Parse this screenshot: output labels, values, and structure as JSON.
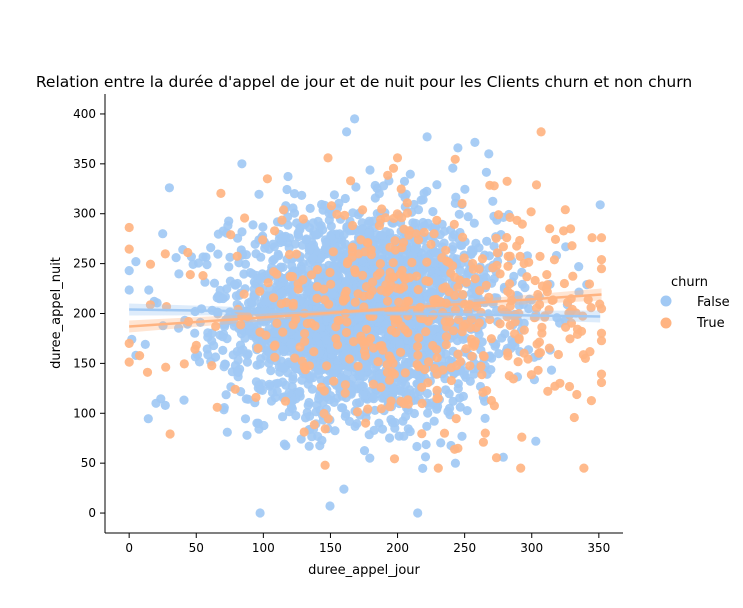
{
  "chart_data": {
    "type": "scatter",
    "title": "Relation entre la durée d'appel de jour et de nuit pour les Clients churn et non churn",
    "xlabel": "duree_appel_jour",
    "ylabel": "duree_appel_nuit",
    "xlim": [
      -18,
      368
    ],
    "ylim": [
      -20,
      420
    ],
    "xticks": [
      0,
      50,
      100,
      150,
      200,
      250,
      300,
      350
    ],
    "yticks": [
      0,
      50,
      100,
      150,
      200,
      250,
      300,
      350,
      400
    ],
    "grid": false,
    "legend": {
      "title": "churn",
      "placement": "right",
      "entries": [
        "False",
        "True"
      ]
    },
    "series": [
      {
        "name": "False",
        "color": "#a1c9f4",
        "generated_cloud": {
          "count": 2850,
          "x_mean": 175,
          "x_sd": 50,
          "y_mean": 200,
          "y_sd": 50,
          "x_range": [
            0,
            351
          ],
          "y_range": [
            0,
            395
          ]
        },
        "points": [
          [
            0,
            243
          ],
          [
            5,
            252
          ],
          [
            5,
            158
          ],
          [
            2,
            174
          ],
          [
            12,
            169
          ],
          [
            20,
            110
          ],
          [
            30,
            326
          ],
          [
            35,
            256
          ],
          [
            25,
            280
          ],
          [
            84,
            350
          ],
          [
            168,
            395
          ],
          [
            162,
            382
          ],
          [
            222,
            377
          ],
          [
            268,
            360
          ],
          [
            245,
            366
          ],
          [
            160,
            24
          ],
          [
            215,
            0
          ],
          [
            40,
            264
          ],
          [
            303,
            72
          ],
          [
            335,
            247
          ],
          [
            341,
            229
          ]
        ],
        "fit": {
          "x": [
            0,
            351
          ],
          "y": [
            204,
            197
          ]
        }
      },
      {
        "name": "True",
        "color": "#ffb482",
        "generated_cloud": {
          "count": 480,
          "x_mean": 215,
          "x_sd": 75,
          "y_mean": 200,
          "y_sd": 52,
          "x_range": [
            0,
            352
          ],
          "y_range": [
            45,
            385
          ]
        },
        "points": [
          [
            0,
            170
          ],
          [
            307,
            382
          ],
          [
            200,
            356
          ],
          [
            272,
            328
          ],
          [
            325,
            304
          ],
          [
            340,
            155
          ],
          [
            345,
            276
          ],
          [
            352,
            276
          ],
          [
            352,
            254
          ],
          [
            330,
            268
          ],
          [
            312,
            122
          ],
          [
            321,
            130
          ],
          [
            165,
            333
          ],
          [
            146,
            48
          ],
          [
            264,
            71
          ],
          [
            235,
            80
          ],
          [
            218,
            126
          ],
          [
            50,
            168
          ],
          [
            55,
            238
          ],
          [
            103,
            335
          ]
        ],
        "fit": {
          "x": [
            0,
            352
          ],
          "y": [
            187,
            219
          ]
        }
      }
    ]
  }
}
